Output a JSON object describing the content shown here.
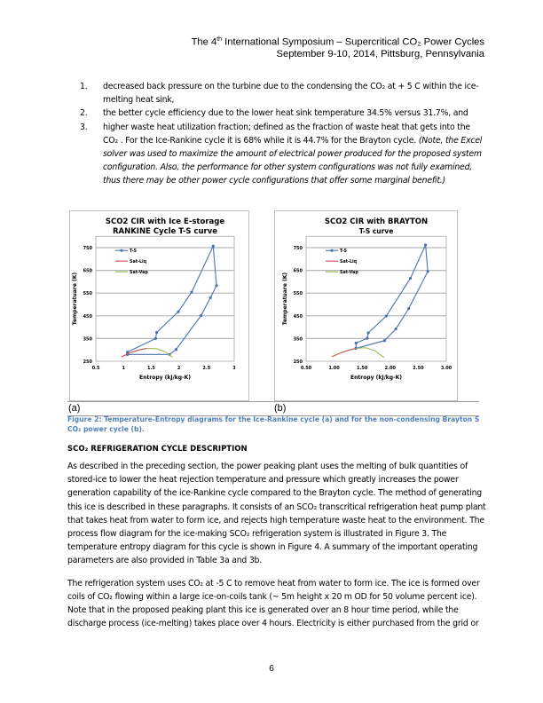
{
  "header": {
    "line1_pre": "The 4",
    "line1_sup": "th",
    "line1_post": " International Symposium – Supercritical CO₂ Power Cycles",
    "line2": "September 9-10, 2014, Pittsburg, Pennsylvania"
  },
  "list": [
    {
      "num": "1.",
      "text": "decreased back pressure on the turbine due to the condensing the CO₂ at + 5 C within the ice-melting heat sink,"
    },
    {
      "num": "2.",
      "text": "the better cycle efficiency due to the lower heat sink temperature 34.5% versus 31.7%, and"
    },
    {
      "num": "3.",
      "text": "higher waste heat utilization fraction; defined as the fraction of waste heat that gets into the CO₂ .  For the Ice-Rankine cycle it is 68% while it is 44.7% for the Brayton cycle.  ",
      "italic": "(Note, the Excel solver was used to maximize the amount of electrical power produced for the proposed system configuration.   Also, the performance for other system configurations was not fully examined, thus there may be other power cycle configurations that offer some marginal benefit.)"
    }
  ],
  "panel_labels": [
    "(a)",
    "(b)"
  ],
  "caption": "Figure 2:  Temperature-Entropy diagrams for the Ice-Rankine cycle (a) and for the non-condensing Brayton S CO₂  power cycle (b).",
  "section_heading": "SCO₂ REFRIGERATION CYCLE DESCRIPTION",
  "paragraph1": "As described in the preceding section, the power peaking plant uses the melting of bulk quantities of stored-ice to lower the heat rejection temperature and pressure which greatly increases the power generation capability of the ice-Rankine cycle compared to the Brayton cycle.  The method of generating this ice is described in these paragraphs.  It consists of an SCO₂ transcritical refrigeration heat pump plant that takes heat from water to form ice, and rejects high temperature waste heat to the environment.   The process flow diagram for the ice-making SCO₂ refrigeration system is illustrated in Figure 3.  The temperature entropy diagram for this cycle is shown in Figure 4.  A summary of the important operating parameters are also provided in Table 3a and 3b.",
  "paragraph2": "The refrigeration system uses CO₂ at -5 C to remove heat from water to form ice.  The ice is formed over coils of CO₂ flowing within a large ice-on-coils tank (~ 5m height x 20 m OD for 50 volume percent ice).  Note that in the proposed peaking plant this ice is generated over an 8 hour time period, while the discharge process (ice-melting) takes place over 4 hours.  Electricity is either purchased from the grid or",
  "page_number": "6",
  "chart_data": [
    {
      "type": "line",
      "title": [
        "SCO2 CIR with Ice E-storage",
        "RANKINE Cycle  T-S curve"
      ],
      "xlabel": "Entropy (kJ/kg-K)",
      "ylabel": "Temperatuare (K)",
      "xlim": [
        0.5,
        3
      ],
      "ylim": [
        250,
        800
      ],
      "xticks": [
        "0.5",
        "1",
        "1.5",
        "2",
        "2.5",
        "3"
      ],
      "xtick_values": [
        0.5,
        1,
        1.5,
        2,
        2.5,
        3
      ],
      "yticks": [
        "250",
        "350",
        "450",
        "550",
        "650",
        "750"
      ],
      "ytick_values": [
        250,
        350,
        450,
        550,
        650,
        750
      ],
      "grid": "horizontal",
      "legend": "top-left",
      "series": [
        {
          "name": "T-S",
          "color": "#4a72b0",
          "markers": true,
          "x": [
            1.07,
            1.07,
            1.58,
            1.6,
            1.99,
            2.23,
            2.62,
            2.68,
            2.57,
            2.4,
            1.95,
            1.83,
            1.07
          ],
          "y": [
            280,
            290,
            350,
            377,
            468,
            554,
            757,
            583,
            530,
            451,
            302,
            280,
            280
          ]
        },
        {
          "name": "Sat-Liq",
          "color": "#c0504d",
          "markers": false,
          "x": [
            0.96,
            1.1,
            1.25,
            1.42
          ],
          "y": [
            269,
            285,
            298,
            307
          ]
        },
        {
          "name": "Sat-Vap",
          "color": "#9bbb59",
          "markers": false,
          "x": [
            1.42,
            1.6,
            1.75,
            1.88
          ],
          "y": [
            307,
            305,
            292,
            268
          ]
        }
      ]
    },
    {
      "type": "line",
      "title": [
        "SCO2 CIR with BRAYTON",
        "T-S curve"
      ],
      "xlabel": "Entropy (kJ/kg-K)",
      "ylabel": "Temperatuare (K)",
      "xlim": [
        0.5,
        3
      ],
      "ylim": [
        250,
        800
      ],
      "xticks": [
        "0.50",
        "1.00",
        "1.50",
        "2.00",
        "2.50",
        "3.00"
      ],
      "xtick_values": [
        0.5,
        1,
        1.5,
        2,
        2.5,
        3
      ],
      "yticks": [
        "250",
        "350",
        "450",
        "550",
        "650",
        "750"
      ],
      "ytick_values": [
        250,
        350,
        450,
        550,
        650,
        750
      ],
      "grid": "horizontal",
      "legend": "top-left",
      "series": [
        {
          "name": "T-S",
          "color": "#4a72b0",
          "markers": true,
          "x": [
            1.39,
            1.39,
            1.59,
            1.61,
            1.93,
            2.36,
            2.63,
            2.67,
            2.33,
            2.1,
            1.9,
            1.39
          ],
          "y": [
            307,
            330,
            351,
            375,
            449,
            615,
            762,
            645,
            482,
            392,
            341,
            307
          ]
        },
        {
          "name": "Sat-Liq",
          "color": "#c0504d",
          "markers": false,
          "x": [
            0.96,
            1.1,
            1.25,
            1.39
          ],
          "y": [
            270,
            285,
            298,
            307
          ]
        },
        {
          "name": "Sat-Vap",
          "color": "#9bbb59",
          "markers": false,
          "x": [
            1.39,
            1.55,
            1.72,
            1.89
          ],
          "y": [
            307,
            310,
            298,
            267
          ]
        }
      ]
    }
  ]
}
